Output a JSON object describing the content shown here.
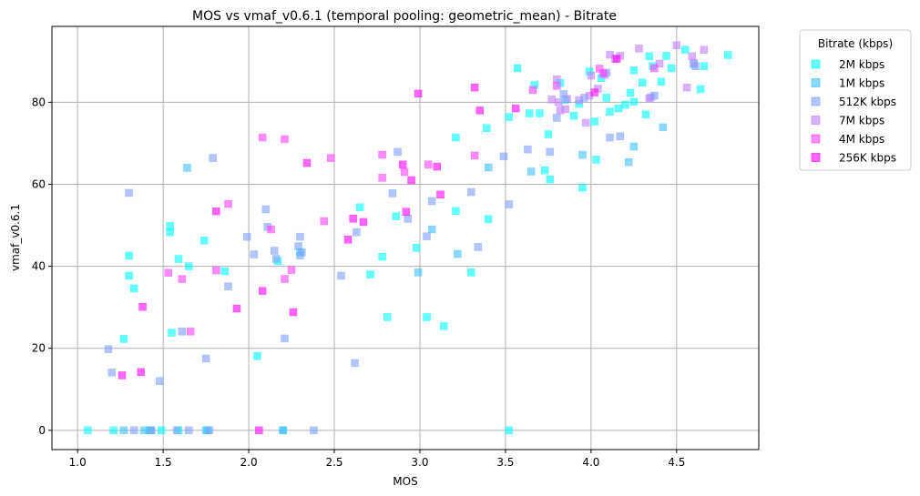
{
  "chart_data": {
    "type": "scatter",
    "title": "MOS vs vmaf_v0.6.1 (temporal pooling: geometric_mean) - Bitrate",
    "xlabel": "MOS",
    "ylabel": "vmaf_v0.6.1",
    "xlim": [
      0.85,
      4.98
    ],
    "ylim": [
      -4.7,
      98.5
    ],
    "xticks": [
      1.0,
      1.5,
      2.0,
      2.5,
      3.0,
      3.5,
      4.0,
      4.5
    ],
    "xtick_labels": [
      "1.0",
      "1.5",
      "2.0",
      "2.5",
      "3.0",
      "3.5",
      "4.0",
      "4.5"
    ],
    "yticks": [
      0,
      20,
      40,
      60,
      80
    ],
    "ytick_labels": [
      "0",
      "20",
      "40",
      "60",
      "80"
    ],
    "grid": true,
    "marker": "square",
    "opacity": 0.6,
    "legend": {
      "title": "Bitrate (kbps)",
      "placement": "outside-top-right"
    },
    "series": [
      {
        "name": "2M kbps",
        "color": "#00ffff",
        "points": [
          [
            1.06,
            0
          ],
          [
            1.21,
            0
          ],
          [
            1.27,
            22.3
          ],
          [
            1.3,
            42.6
          ],
          [
            1.3,
            37.7
          ],
          [
            1.33,
            34.6
          ],
          [
            1.42,
            0
          ],
          [
            1.49,
            0
          ],
          [
            1.54,
            49.8
          ],
          [
            1.54,
            48.3
          ],
          [
            1.59,
            41.8
          ],
          [
            1.65,
            40
          ],
          [
            1.59,
            0
          ],
          [
            1.74,
            46.3
          ],
          [
            1.76,
            0
          ],
          [
            1.86,
            38.8
          ],
          [
            1.55,
            23.8
          ],
          [
            2.05,
            18.1
          ],
          [
            2.17,
            41.3
          ],
          [
            2.3,
            43.4
          ],
          [
            2.65,
            54.4
          ],
          [
            2.71,
            38
          ],
          [
            2.78,
            42.3
          ],
          [
            2.81,
            27.6
          ],
          [
            2.86,
            52.2
          ],
          [
            2.98,
            44.5
          ],
          [
            3.04,
            27.6
          ],
          [
            3.14,
            25.4
          ],
          [
            3.21,
            71.4
          ],
          [
            3.21,
            53.5
          ],
          [
            3.3,
            38.5
          ],
          [
            3.39,
            73.7
          ],
          [
            3.4,
            51.5
          ],
          [
            3.52,
            76.4
          ],
          [
            3.57,
            88.3
          ],
          [
            3.64,
            77.3
          ],
          [
            3.67,
            84.2
          ],
          [
            3.7,
            77.3
          ],
          [
            3.73,
            63.4
          ],
          [
            3.75,
            72.2
          ],
          [
            3.76,
            61.2
          ],
          [
            3.82,
            84.7
          ],
          [
            3.85,
            80.6
          ],
          [
            3.9,
            76.7
          ],
          [
            3.93,
            79.6
          ],
          [
            3.95,
            59.2
          ],
          [
            3.99,
            87.5
          ],
          [
            4.02,
            75.3
          ],
          [
            4.06,
            85.9
          ],
          [
            4.09,
            81.1
          ],
          [
            4.11,
            77.7
          ],
          [
            4.16,
            78.5
          ],
          [
            4.2,
            79.4
          ],
          [
            4.23,
            82.3
          ],
          [
            4.25,
            87.8
          ],
          [
            4.25,
            80.1
          ],
          [
            4.3,
            84.8
          ],
          [
            4.32,
            77
          ],
          [
            4.34,
            91.2
          ],
          [
            4.36,
            88.8
          ],
          [
            4.41,
            85
          ],
          [
            4.44,
            91.3
          ],
          [
            4.47,
            88.3
          ],
          [
            4.55,
            92.8
          ],
          [
            4.6,
            89.3
          ],
          [
            4.64,
            83.2
          ],
          [
            4.66,
            88.8
          ],
          [
            4.8,
            91.5
          ],
          [
            3.52,
            0
          ],
          [
            4.03,
            66
          ]
        ]
      },
      {
        "name": "1M kbps",
        "color": "#3fbfff",
        "points": [
          [
            1.27,
            0
          ],
          [
            1.39,
            0
          ],
          [
            1.43,
            0
          ],
          [
            1.64,
            64
          ],
          [
            1.75,
            0
          ],
          [
            2.2,
            0
          ],
          [
            2.2,
            0
          ],
          [
            3.65,
            63.1
          ],
          [
            3.95,
            67.2
          ],
          [
            4.22,
            65.4
          ],
          [
            4.25,
            69.2
          ],
          [
            4.42,
            73.9
          ],
          [
            3.4,
            64.1
          ],
          [
            3.22,
            43
          ],
          [
            3.07,
            49
          ],
          [
            2.99,
            38.5
          ]
        ]
      },
      {
        "name": "512K kbps",
        "color": "#7f9fff",
        "points": [
          [
            1.18,
            19.8
          ],
          [
            1.2,
            14.1
          ],
          [
            1.3,
            57.9
          ],
          [
            1.33,
            0
          ],
          [
            1.43,
            0
          ],
          [
            1.48,
            12
          ],
          [
            1.58,
            0
          ],
          [
            1.61,
            24.1
          ],
          [
            1.65,
            0
          ],
          [
            1.75,
            17.5
          ],
          [
            1.77,
            0
          ],
          [
            1.79,
            66.4
          ],
          [
            1.88,
            35.1
          ],
          [
            1.99,
            47.2
          ],
          [
            2.03,
            42.9
          ],
          [
            2.1,
            53.9
          ],
          [
            2.11,
            49.6
          ],
          [
            2.15,
            43.8
          ],
          [
            2.16,
            41.8
          ],
          [
            2.21,
            22.4
          ],
          [
            2.29,
            44.9
          ],
          [
            2.3,
            47.2
          ],
          [
            2.3,
            42.6
          ],
          [
            2.31,
            43.4
          ],
          [
            2.38,
            0
          ],
          [
            2.54,
            37.7
          ],
          [
            2.62,
            16.4
          ],
          [
            2.63,
            48.3
          ],
          [
            2.84,
            57.8
          ],
          [
            2.87,
            67.9
          ],
          [
            2.93,
            51.6
          ],
          [
            3.04,
            47.3
          ],
          [
            3.07,
            55.9
          ],
          [
            3.3,
            58.1
          ],
          [
            3.34,
            44.7
          ],
          [
            3.49,
            66.8
          ],
          [
            3.52,
            55.1
          ],
          [
            3.76,
            67.9
          ],
          [
            3.8,
            76.2
          ],
          [
            3.84,
            82
          ],
          [
            3.96,
            81.1
          ],
          [
            4.09,
            87.2
          ],
          [
            4.11,
            71.4
          ],
          [
            4.17,
            71.7
          ],
          [
            4.35,
            81.2
          ],
          [
            4.37,
            81.6
          ],
          [
            4.61,
            88.8
          ],
          [
            3.63,
            68.5
          ]
        ]
      },
      {
        "name": "7M kbps",
        "color": "#bf7fff",
        "points": [
          [
            3.8,
            85.6
          ],
          [
            3.81,
            80
          ],
          [
            3.85,
            78.3
          ],
          [
            3.86,
            80.8
          ],
          [
            3.93,
            80.5
          ],
          [
            3.97,
            75
          ],
          [
            3.99,
            81.6
          ],
          [
            4,
            86.5
          ],
          [
            4.04,
            83.3
          ],
          [
            4.08,
            86.7
          ],
          [
            4.11,
            91.6
          ],
          [
            4.14,
            90.6
          ],
          [
            4.17,
            91.3
          ],
          [
            4.28,
            93.1
          ],
          [
            4.34,
            80.9
          ],
          [
            4.4,
            89.4
          ],
          [
            4.5,
            93.9
          ],
          [
            4.56,
            83.6
          ],
          [
            4.59,
            91.2
          ],
          [
            4.6,
            89.6
          ],
          [
            4.66,
            92.8
          ],
          [
            3.77,
            80.7
          ],
          [
            3.82,
            78
          ]
        ]
      },
      {
        "name": "4M kbps",
        "color": "#ff3fff",
        "points": [
          [
            1.53,
            38.4
          ],
          [
            1.61,
            36.9
          ],
          [
            1.66,
            24.1
          ],
          [
            1.81,
            39
          ],
          [
            1.88,
            55.2
          ],
          [
            2.13,
            49
          ],
          [
            2.21,
            36.9
          ],
          [
            2.25,
            39.1
          ],
          [
            2.44,
            51
          ],
          [
            2.48,
            66.4
          ],
          [
            2.78,
            61.6
          ],
          [
            2.78,
            67.2
          ],
          [
            2.91,
            63
          ],
          [
            3.05,
            64.8
          ],
          [
            3.32,
            67
          ],
          [
            3.8,
            84
          ],
          [
            4.05,
            88.2
          ],
          [
            4.07,
            87.1
          ],
          [
            4.37,
            88.3
          ],
          [
            3.66,
            83
          ],
          [
            2.08,
            71.4
          ],
          [
            2.21,
            71
          ]
        ]
      },
      {
        "name": "256K kbps",
        "color": "#ff00ff",
        "points": [
          [
            1.26,
            13.4
          ],
          [
            1.37,
            14.2
          ],
          [
            1.38,
            30.1
          ],
          [
            1.81,
            53.4
          ],
          [
            1.93,
            29.7
          ],
          [
            2.06,
            0
          ],
          [
            2.08,
            34
          ],
          [
            2.26,
            28.8
          ],
          [
            2.34,
            65.2
          ],
          [
            2.58,
            46.5
          ],
          [
            2.61,
            51.6
          ],
          [
            2.67,
            50.8
          ],
          [
            2.9,
            64.8
          ],
          [
            2.92,
            53.3
          ],
          [
            2.95,
            61
          ],
          [
            2.99,
            82.1
          ],
          [
            3.1,
            64.3
          ],
          [
            3.12,
            57.5
          ],
          [
            3.32,
            83.6
          ],
          [
            3.35,
            78
          ],
          [
            3.56,
            78.5
          ],
          [
            4.02,
            82.4
          ],
          [
            4.15,
            90.6
          ]
        ]
      }
    ]
  }
}
